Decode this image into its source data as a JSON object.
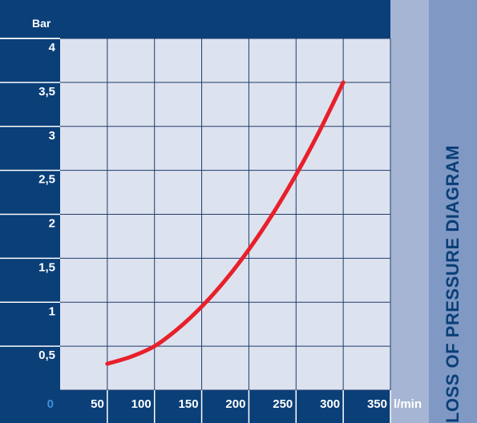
{
  "side_title": "LOSS OF PRESSURE DIAGRAM",
  "chart_data": {
    "type": "line",
    "ylabel": "Bar",
    "xlabel": "l/min",
    "xlim": [
      0,
      350
    ],
    "ylim": [
      0,
      4
    ],
    "x_ticks": [
      {
        "value": 0,
        "label": "0"
      },
      {
        "value": 50,
        "label": "50"
      },
      {
        "value": 100,
        "label": "100"
      },
      {
        "value": 150,
        "label": "150"
      },
      {
        "value": 200,
        "label": "200"
      },
      {
        "value": 250,
        "label": "250"
      },
      {
        "value": 300,
        "label": "300"
      },
      {
        "value": 350,
        "label": "350"
      }
    ],
    "y_ticks": [
      {
        "value": 0.5,
        "label": "0,5"
      },
      {
        "value": 1,
        "label": "1"
      },
      {
        "value": 1.5,
        "label": "1,5"
      },
      {
        "value": 2,
        "label": "2"
      },
      {
        "value": 2.5,
        "label": "2,5"
      },
      {
        "value": 3,
        "label": "3"
      },
      {
        "value": 3.5,
        "label": "3,5"
      },
      {
        "value": 4,
        "label": "4"
      }
    ],
    "grid": true,
    "series": [
      {
        "color": "#e8202a",
        "points": [
          [
            50,
            0.3
          ],
          [
            75,
            0.38
          ],
          [
            100,
            0.5
          ],
          [
            125,
            0.7
          ],
          [
            150,
            0.95
          ],
          [
            175,
            1.25
          ],
          [
            200,
            1.6
          ],
          [
            225,
            2.0
          ],
          [
            250,
            2.45
          ],
          [
            275,
            2.95
          ],
          [
            300,
            3.5
          ]
        ]
      }
    ],
    "colors": {
      "axis_band": "#0a3f78",
      "plot_bg": "#dde2ef",
      "grid": "#1f3d6b",
      "axis_text": "#ffffff",
      "origin_text": "#3f8fd8",
      "right_strip": "#a7b5d4",
      "side_panel": "#7f98c4",
      "side_title": "#0a3f78"
    }
  }
}
